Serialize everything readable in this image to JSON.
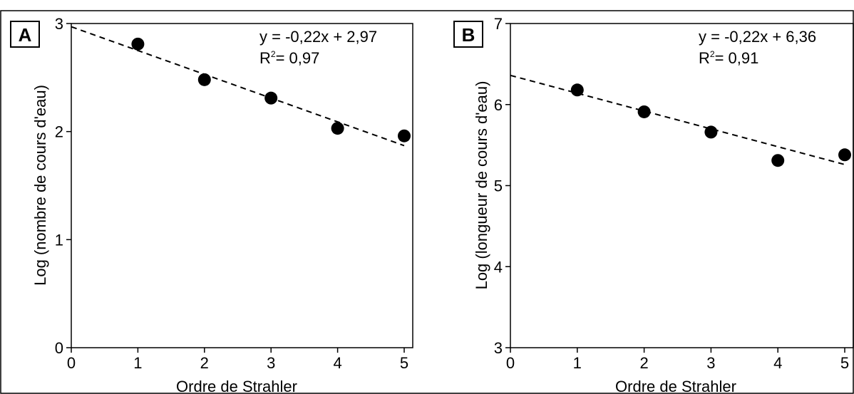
{
  "chart_data": [
    {
      "type": "scatter",
      "panel_label": "A",
      "xlabel": "Ordre de Strahler",
      "ylabel": "Log (nombre de cours d'eau)",
      "xlim": [
        0,
        5.1
      ],
      "ylim": [
        0,
        3
      ],
      "xticks": [
        0,
        1,
        2,
        3,
        4,
        5
      ],
      "yticks": [
        0,
        1,
        2,
        3
      ],
      "points": {
        "x": [
          1,
          2,
          3,
          4,
          5
        ],
        "y": [
          2.81,
          2.48,
          2.31,
          2.03,
          1.96
        ]
      },
      "fit": {
        "slope": -0.22,
        "intercept": 2.97,
        "x_range": [
          0,
          5
        ]
      },
      "equation": "y = -0,22x + 2,97",
      "r2_label": "R",
      "r2_sup": "2",
      "r2_value": "= 0,97"
    },
    {
      "type": "scatter",
      "panel_label": "B",
      "xlabel": "Ordre de Strahler",
      "ylabel": "Log (longueur de cours d'eau)",
      "xlim": [
        0,
        5.1
      ],
      "ylim": [
        3,
        7
      ],
      "xticks": [
        0,
        1,
        2,
        3,
        4,
        5
      ],
      "yticks": [
        3,
        4,
        5,
        6,
        7
      ],
      "points": {
        "x": [
          1,
          2,
          3,
          4,
          5
        ],
        "y": [
          6.18,
          5.91,
          5.66,
          5.31,
          5.38
        ]
      },
      "fit": {
        "slope": -0.22,
        "intercept": 6.36,
        "x_range": [
          0,
          5
        ]
      },
      "equation": "y = -0,22x + 6,36",
      "r2_label": "R",
      "r2_sup": "2",
      "r2_value": "= 0,91"
    }
  ]
}
